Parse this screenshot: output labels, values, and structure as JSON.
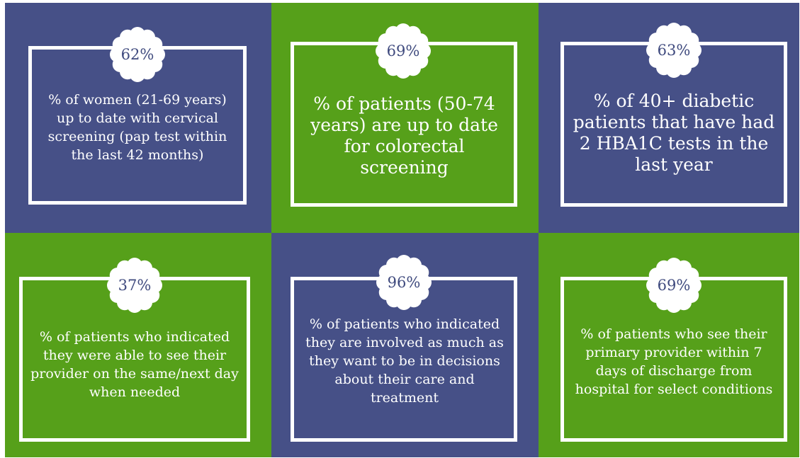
{
  "colors": {
    "navy": "#465087",
    "green": "#56a01a",
    "white": "#ffffff",
    "badge_text": "#3f4a7e"
  },
  "tiles": [
    {
      "value": "62%",
      "text": "% of women (21-69 years) up to date with cervical screening (pap test within the last 42 months)",
      "color": "navy",
      "icon": "scalloped-badge"
    },
    {
      "value": "69%",
      "text": "% of patients (50-74 years) are up to date for colorectal screening",
      "color": "green",
      "icon": "scalloped-badge"
    },
    {
      "value": "63%",
      "text": "% of 40+ diabetic patients that have had 2 HBA1C tests in the last year",
      "color": "navy",
      "icon": "scalloped-badge"
    },
    {
      "value": "37%",
      "text": "% of patients who indicated they were able to see their provider on the same/next day when needed",
      "color": "green",
      "icon": "scalloped-badge"
    },
    {
      "value": "96%",
      "text": "% of patients who indicated they are involved as much as they want to be in decisions about their care and treatment",
      "color": "navy",
      "icon": "scalloped-badge"
    },
    {
      "value": "69%",
      "text": "% of patients who see their primary provider within 7 days of discharge from hospital for select conditions",
      "color": "green",
      "icon": "scalloped-badge"
    }
  ]
}
